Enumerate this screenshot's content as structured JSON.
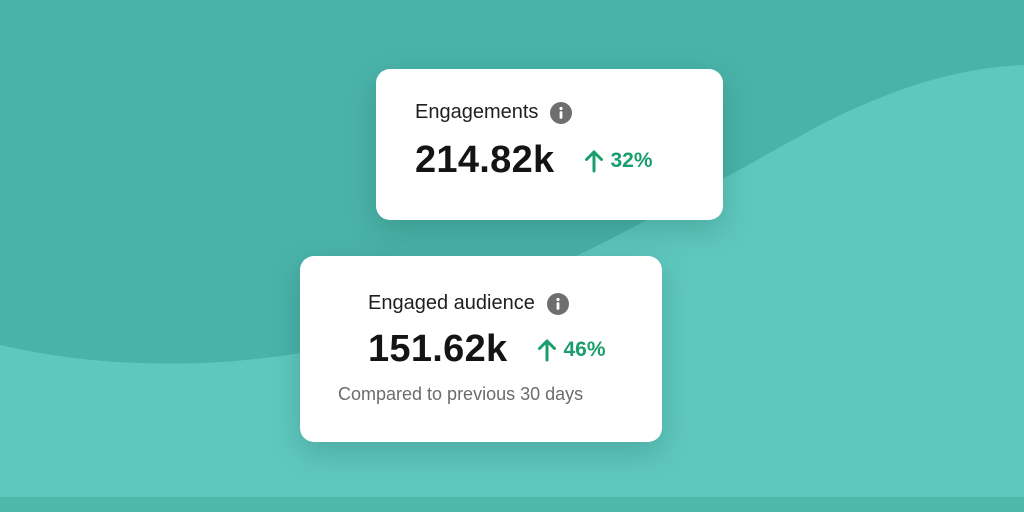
{
  "colors": {
    "background": "#4db5ab",
    "wave_light": "#5fc9bf",
    "card": "#ffffff",
    "positive": "#1a9e6d",
    "info_icon": "#6e6e6e"
  },
  "cards": [
    {
      "label": "Engagements",
      "value": "214.82k",
      "change": "32%",
      "trend_icon": "arrow-up-icon",
      "info_icon": "info-icon"
    },
    {
      "label": "Engaged audience",
      "value": "151.62k",
      "change": "46%",
      "trend_icon": "arrow-up-icon",
      "info_icon": "info-icon",
      "note": "Compared to previous 30 days"
    }
  ]
}
